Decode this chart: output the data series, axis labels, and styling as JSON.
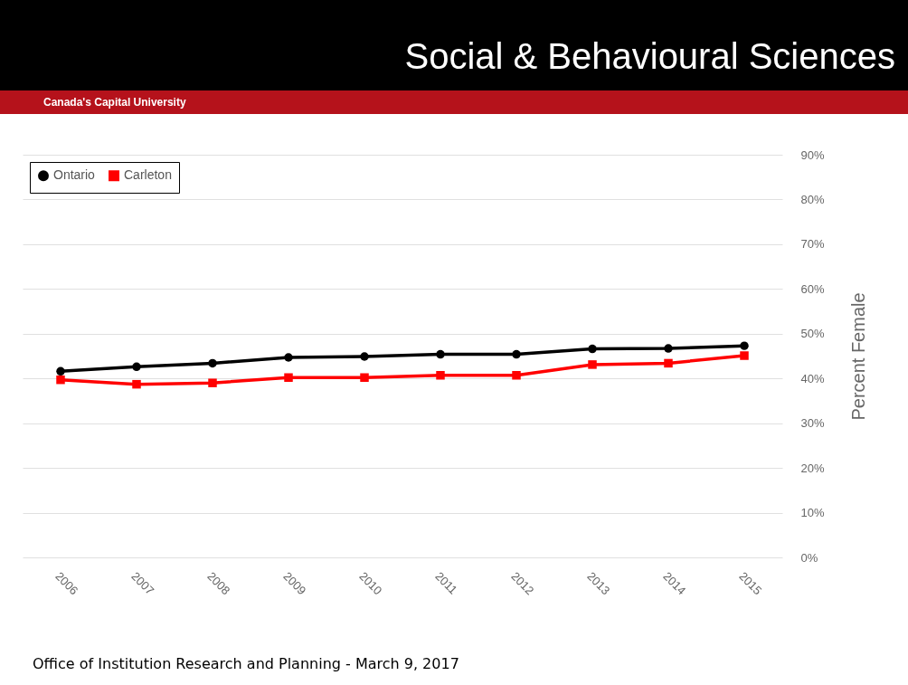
{
  "chart_data": {
    "type": "line",
    "title": "Social & Behavioural Sciences",
    "subtitle": "Canada's Capital University",
    "ylabel": "Percent Female",
    "categories": [
      "2006",
      "2007",
      "2008",
      "2009",
      "2010",
      "2011",
      "2012",
      "2013",
      "2014",
      "2015"
    ],
    "series": [
      {
        "name": "Ontario",
        "color": "#000000",
        "marker": "circle",
        "values": [
          41.6,
          42.6,
          43.4,
          44.7,
          44.9,
          45.4,
          45.4,
          46.6,
          46.7,
          47.3
        ]
      },
      {
        "name": "Carleton",
        "color": "#ff0000",
        "marker": "square",
        "values": [
          39.7,
          38.7,
          39.0,
          40.2,
          40.2,
          40.7,
          40.7,
          43.1,
          43.4,
          45.1
        ]
      }
    ],
    "ylim": [
      0,
      90
    ],
    "yticks": [
      {
        "value": 0,
        "label": "0%"
      },
      {
        "value": 10,
        "label": "10%"
      },
      {
        "value": 20,
        "label": "20%"
      },
      {
        "value": 30,
        "label": "30%"
      },
      {
        "value": 40,
        "label": "40%"
      },
      {
        "value": 50,
        "label": "50%"
      },
      {
        "value": 60,
        "label": "60%"
      },
      {
        "value": 70,
        "label": "70%"
      },
      {
        "value": 80,
        "label": "80%"
      },
      {
        "value": 90,
        "label": "90%"
      }
    ],
    "grid": "y",
    "legend": "top left",
    "annotations": [
      "Office of Institution Research and Planning - March 9, 2017"
    ]
  }
}
